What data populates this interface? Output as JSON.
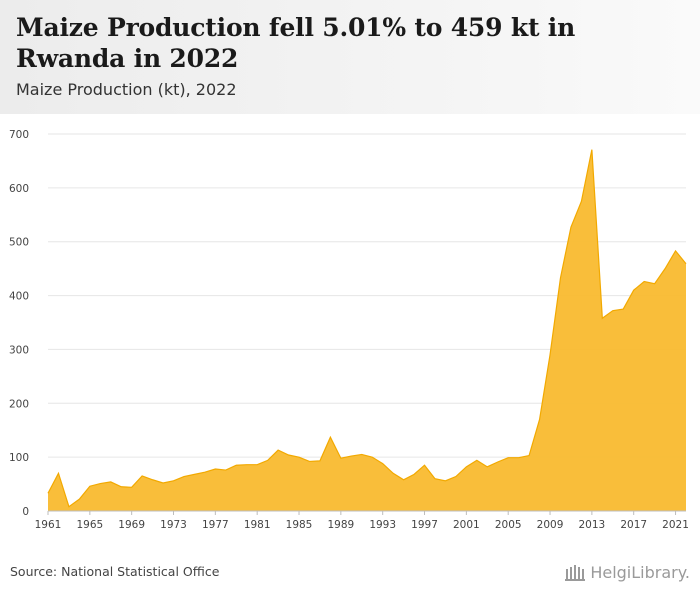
{
  "header": {
    "title": "Maize Production fell 5.01% to 459 kt in Rwanda in 2022",
    "subtitle": "Maize Production (kt), 2022"
  },
  "footer": {
    "source": "Source: National Statistical Office",
    "logo_text": "HelgiLibrary."
  },
  "colors": {
    "area_fill": "#F9BA2F",
    "area_stroke": "#F2A900",
    "grid": "#e6e6e6",
    "tick_text": "#444444"
  },
  "chart_data": {
    "type": "area",
    "title": "Maize Production fell 5.01% to 459 kt in Rwanda in 2022",
    "subtitle": "Maize Production (kt), 2022",
    "xlabel": "",
    "ylabel": "",
    "ylim": [
      0,
      700
    ],
    "y_ticks": [
      0,
      100,
      200,
      300,
      400,
      500,
      600,
      700
    ],
    "x_ticks": [
      "1961",
      "1965",
      "1969",
      "1973",
      "1977",
      "1981",
      "1985",
      "1989",
      "1993",
      "1997",
      "2001",
      "2005",
      "2009",
      "2013",
      "2017",
      "2021"
    ],
    "grid": true,
    "legend": "none",
    "series": [
      {
        "x": [
          1961,
          1962,
          1963,
          1964,
          1965,
          1966,
          1967,
          1968,
          1969,
          1970,
          1971,
          1972,
          1973,
          1974,
          1975,
          1976,
          1977,
          1978,
          1979,
          1980,
          1981,
          1982,
          1983,
          1984,
          1985,
          1986,
          1987,
          1988,
          1989,
          1990,
          1991,
          1992,
          1993,
          1994,
          1995,
          1996,
          1997,
          1998,
          1999,
          2000,
          2001,
          2002,
          2003,
          2004,
          2005,
          2006,
          2007,
          2008,
          2009,
          2010,
          2011,
          2012,
          2013,
          2014,
          2015,
          2016,
          2017,
          2018,
          2019,
          2020,
          2021,
          2022
        ],
        "values": [
          33,
          70,
          8,
          22,
          46,
          51,
          54,
          45,
          44,
          65,
          58,
          52,
          56,
          64,
          68,
          72,
          78,
          76,
          85,
          86,
          86,
          94,
          113,
          104,
          100,
          92,
          93,
          137,
          98,
          102,
          105,
          100,
          88,
          70,
          58,
          68,
          85,
          60,
          56,
          64,
          82,
          94,
          82,
          91,
          99,
          99,
          103,
          170,
          290,
          433,
          527,
          575,
          671,
          358,
          372,
          375,
          410,
          426,
          422,
          450,
          483,
          459
        ]
      }
    ]
  }
}
